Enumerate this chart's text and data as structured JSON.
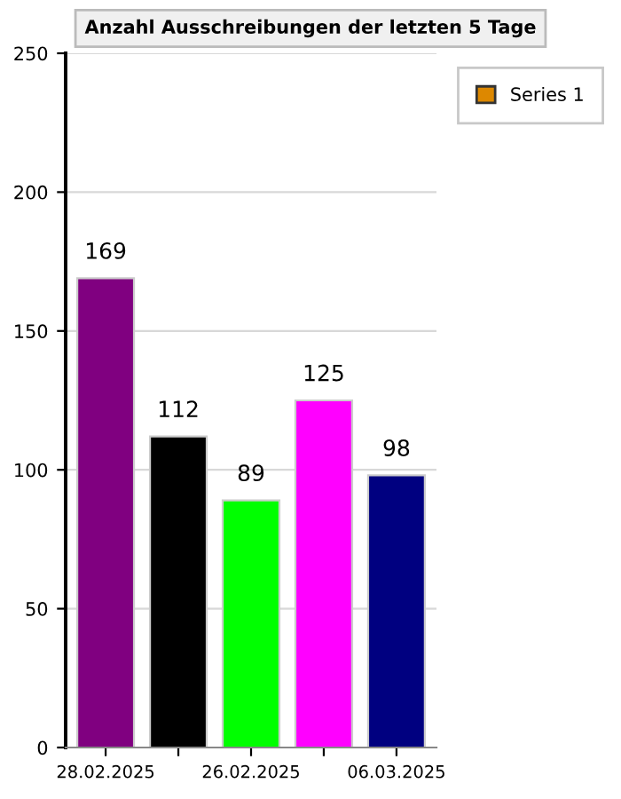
{
  "chart_data": {
    "type": "bar",
    "title": "Anzahl Ausschreibungen der letzten 5 Tage",
    "categories": [
      "28.02.2025",
      null,
      "26.02.2025",
      null,
      "06.03.2025"
    ],
    "series": [
      {
        "name": "Series 1",
        "color": "#dd8800",
        "colors": [
          "#800080",
          "#000000",
          "#00ff00",
          "#ff00ff",
          "#000080"
        ],
        "values": [
          169,
          112,
          89,
          125,
          98
        ]
      }
    ],
    "ylim": [
      0,
      250
    ],
    "yticks": [
      0,
      50,
      100,
      150,
      200,
      250
    ],
    "grid": "y",
    "legend": "top right",
    "data_labels": true
  }
}
